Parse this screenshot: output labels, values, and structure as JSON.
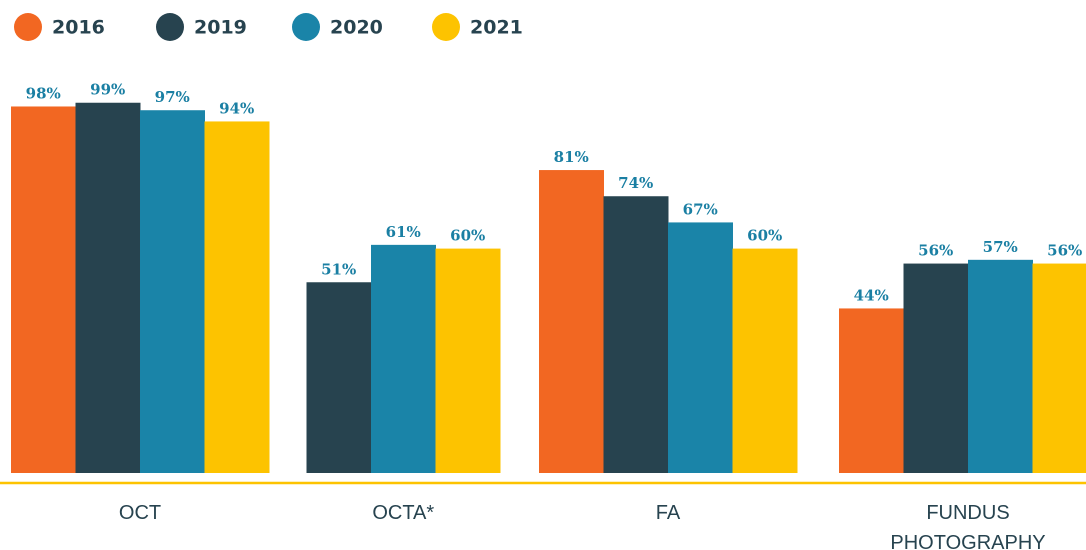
{
  "chart_data": {
    "type": "bar",
    "categories": [
      "OCT",
      "OCTA*",
      "FA",
      "FUNDUS PHOTOGRAPHY"
    ],
    "series": [
      {
        "name": "2016",
        "color": "#f26722",
        "values": [
          98,
          null,
          81,
          44
        ],
        "value_labels": [
          "98%",
          null,
          "81%",
          "44%"
        ]
      },
      {
        "name": "2019",
        "color": "#27434f",
        "values": [
          99,
          51,
          74,
          56
        ],
        "value_labels": [
          "99%",
          "51%",
          "74%",
          "56%"
        ]
      },
      {
        "name": "2020",
        "color": "#1a84a8",
        "values": [
          97,
          61,
          67,
          57
        ],
        "value_labels": [
          "97%",
          "61%",
          "67%",
          "57%"
        ]
      },
      {
        "name": "2021",
        "color": "#fdc300",
        "values": [
          94,
          60,
          60,
          56
        ],
        "value_labels": [
          "94%",
          "60%",
          "60%",
          "56%"
        ]
      }
    ],
    "legend": "top-left"
  }
}
